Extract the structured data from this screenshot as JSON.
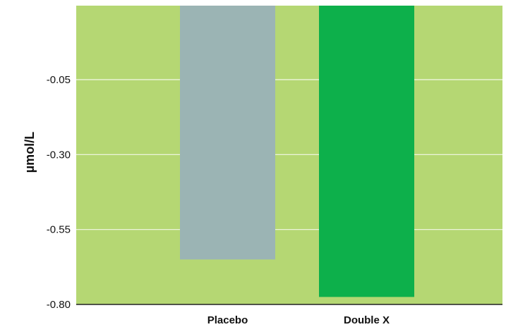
{
  "colors": {
    "background": "#b5d773",
    "gridline": "#f4f8e8",
    "axis": "#222222"
  },
  "chart_data": {
    "type": "bar",
    "categories": [
      "Placebo",
      "Double X"
    ],
    "series": [
      {
        "values": [
          -0.65,
          -0.775
        ],
        "colors": [
          "#9bb4b4",
          "#0db04b"
        ]
      }
    ],
    "ylabel": "µmol/L",
    "xlabel": "",
    "yticks": [
      "-0.05",
      "-0.30",
      "-0.55",
      "-0.80"
    ],
    "ytick_values": [
      -0.05,
      -0.3,
      -0.55,
      -0.8
    ],
    "ylim": [
      0.2,
      -0.8
    ],
    "grid": true,
    "legend": "none"
  }
}
